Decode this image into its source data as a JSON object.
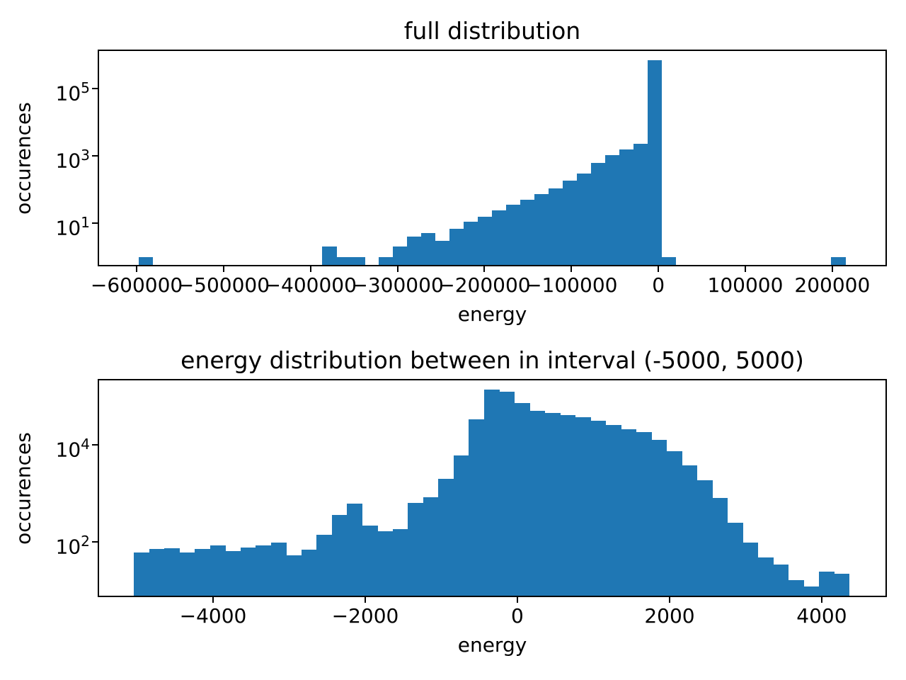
{
  "figure": {
    "background": "#ffffff",
    "text_color": "#000000",
    "spine_color": "#000000"
  },
  "chart_data": [
    {
      "type": "bar",
      "subtype": "histogram",
      "title": "full distribution",
      "xlabel": "energy",
      "ylabel": "occurences",
      "bar_color": "#1f77b4",
      "yscale": "log",
      "grid": false,
      "legend": null,
      "bin_start": -598000,
      "bin_width": 16260,
      "counts": [
        1,
        0,
        0,
        0,
        0,
        0,
        0,
        0,
        0,
        0,
        0,
        0,
        0,
        2,
        1,
        1,
        0,
        1,
        2,
        4,
        5,
        3,
        7,
        11,
        16,
        24,
        35,
        50,
        75,
        110,
        190,
        300,
        620,
        1050,
        1600,
        2300,
        700000,
        1,
        0,
        0,
        0,
        0,
        0,
        0,
        0,
        0,
        0,
        0,
        0,
        1
      ],
      "xlim": [
        -644000,
        262000
      ],
      "ylim_log10": [
        -0.26,
        6.146
      ],
      "xticks": [
        {
          "v": -600000,
          "label": "−600000"
        },
        {
          "v": -500000,
          "label": "−500000"
        },
        {
          "v": -400000,
          "label": "−400000"
        },
        {
          "v": -300000,
          "label": "−300000"
        },
        {
          "v": -200000,
          "label": "−200000"
        },
        {
          "v": -100000,
          "label": "−100000"
        },
        {
          "v": 0,
          "label": "0"
        },
        {
          "v": 100000,
          "label": "100000"
        },
        {
          "v": 200000,
          "label": "200000"
        }
      ],
      "yticks": [
        {
          "v": 100000,
          "base": "10",
          "exp": "5"
        },
        {
          "v": 1000,
          "base": "10",
          "exp": "3"
        },
        {
          "v": 10,
          "base": "10",
          "exp": "1"
        }
      ]
    },
    {
      "type": "bar",
      "subtype": "histogram",
      "title": "energy distribution between in interval (-5000, 5000)",
      "xlabel": "energy",
      "ylabel": "occurences",
      "bar_color": "#1f77b4",
      "yscale": "log",
      "grid": false,
      "legend": null,
      "bin_start": -5040,
      "bin_width": 200,
      "counts": [
        60,
        72,
        73,
        60,
        72,
        83,
        64,
        76,
        85,
        97,
        52,
        70,
        140,
        360,
        620,
        218,
        165,
        185,
        630,
        830,
        2000,
        6000,
        34000,
        138000,
        125000,
        73000,
        50000,
        45000,
        41000,
        37000,
        31000,
        26000,
        21000,
        18000,
        12500,
        7400,
        3800,
        1870,
        800,
        245,
        95,
        48,
        34,
        16,
        12,
        24,
        22
      ],
      "xlim": [
        -5507,
        4847
      ],
      "ylim_log10": [
        0.875,
        5.342
      ],
      "xticks": [
        {
          "v": -4000,
          "label": "−4000"
        },
        {
          "v": -2000,
          "label": "−2000"
        },
        {
          "v": 0,
          "label": "0"
        },
        {
          "v": 2000,
          "label": "2000"
        },
        {
          "v": 4000,
          "label": "4000"
        }
      ],
      "yticks": [
        {
          "v": 10000,
          "base": "10",
          "exp": "4"
        },
        {
          "v": 100,
          "base": "10",
          "exp": "2"
        }
      ]
    }
  ]
}
